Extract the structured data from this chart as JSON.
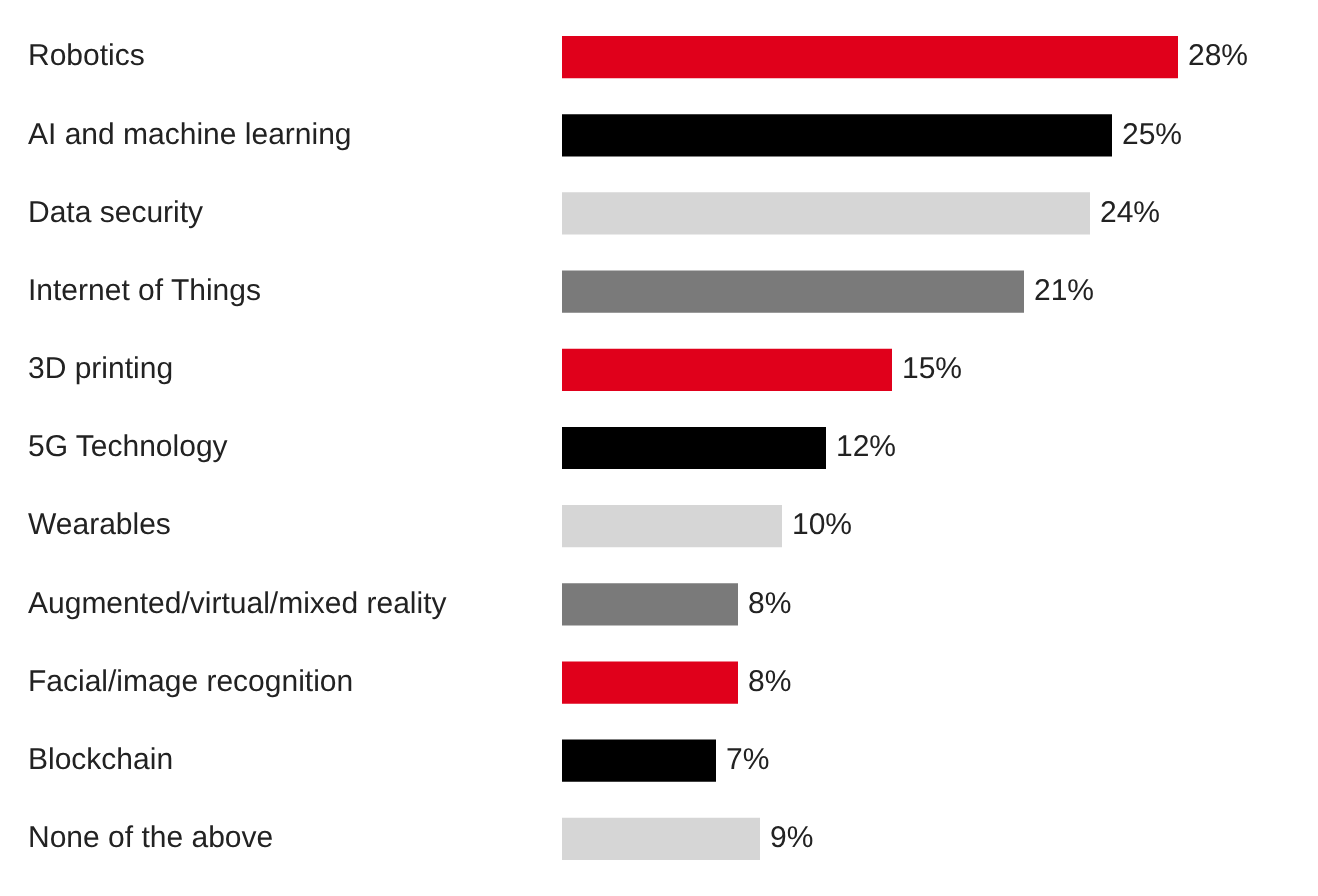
{
  "chart_data": {
    "type": "bar",
    "orientation": "horizontal",
    "categories": [
      "Robotics",
      "AI and machine learning",
      "Data security",
      "Internet of Things",
      "3D printing",
      "5G Technology",
      "Wearables",
      "Augmented/virtual/mixed reality",
      "Facial/image recognition",
      "Blockchain",
      "None of the above"
    ],
    "values": [
      28,
      25,
      24,
      21,
      15,
      12,
      10,
      8,
      8,
      7,
      9
    ],
    "value_labels": [
      "28%",
      "25%",
      "24%",
      "21%",
      "15%",
      "12%",
      "10%",
      "8%",
      "8%",
      "7%",
      "9%"
    ],
    "colors": [
      "#e0001b",
      "#000000",
      "#d6d6d6",
      "#7a7a7a",
      "#e0001b",
      "#000000",
      "#d6d6d6",
      "#7a7a7a",
      "#e0001b",
      "#000000",
      "#d6d6d6"
    ],
    "legend": false
  }
}
